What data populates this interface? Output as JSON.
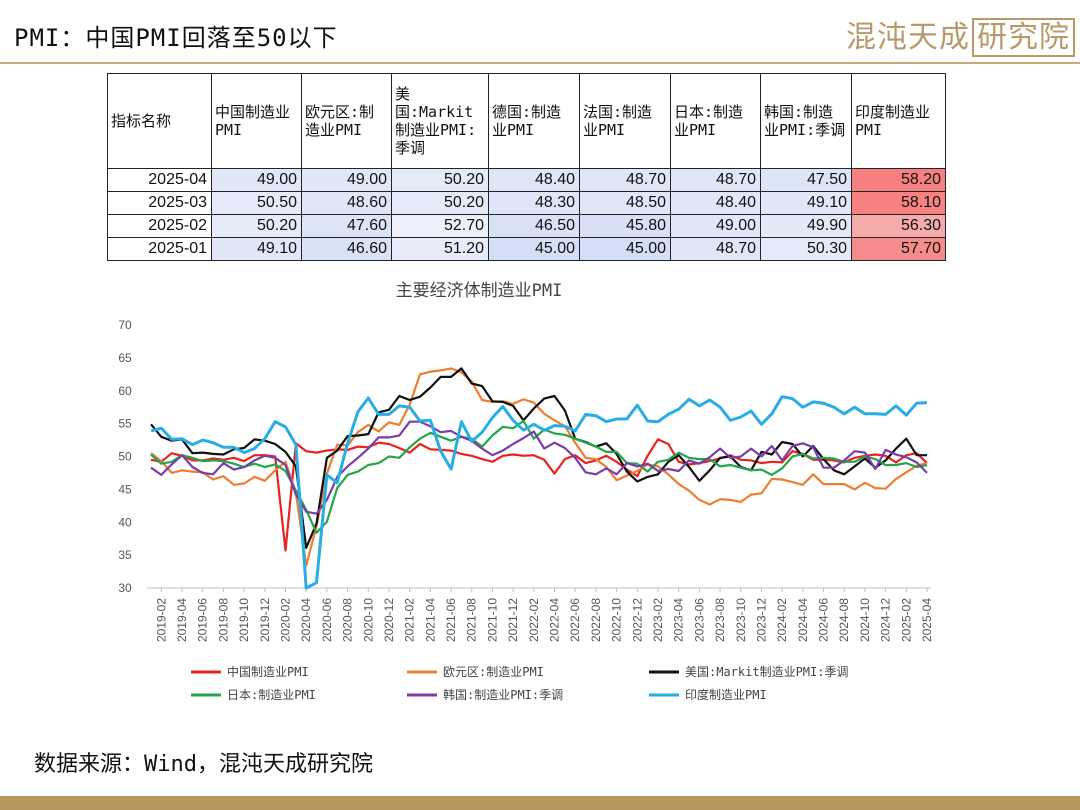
{
  "slide": {
    "title": "PMI：中国PMI回落至50以下",
    "logo_main": "混沌天成",
    "logo_boxed": "研究院",
    "source": "数据来源：Wind，混沌天成研究院"
  },
  "table": {
    "headers": [
      "指标名称",
      "中国制造业PMI",
      "欧元区:制造业PMI",
      "美国:Markit制造业PMI:季调",
      "德国:制造业PMI",
      "法国:制造业PMI",
      "日本:制造业PMI",
      "韩国:制造业PMI:季调",
      "印度制造业PMI"
    ],
    "rows": [
      {
        "date": "2025-04",
        "values": [
          "49.00",
          "49.00",
          "50.20",
          "48.40",
          "48.70",
          "48.70",
          "47.50",
          "58.20"
        ]
      },
      {
        "date": "2025-03",
        "values": [
          "50.50",
          "48.60",
          "50.20",
          "48.30",
          "48.50",
          "48.40",
          "49.10",
          "58.10"
        ]
      },
      {
        "date": "2025-02",
        "values": [
          "50.20",
          "47.60",
          "52.70",
          "46.50",
          "45.80",
          "49.00",
          "49.90",
          "56.30"
        ]
      },
      {
        "date": "2025-01",
        "values": [
          "49.10",
          "46.60",
          "51.20",
          "45.00",
          "45.00",
          "48.70",
          "50.30",
          "57.70"
        ]
      }
    ]
  },
  "chart_data": {
    "type": "line",
    "title": "主要经济体制造业PMI",
    "xlabel": "",
    "ylabel": "",
    "ylim": [
      30,
      70
    ],
    "yticks": [
      "70",
      "65",
      "60",
      "55",
      "50",
      "45",
      "40",
      "35",
      "30"
    ],
    "xticks": [
      "2019-02",
      "2019-04",
      "2019-06",
      "2019-08",
      "2019-10",
      "2019-12",
      "2020-02",
      "2020-04",
      "2020-06",
      "2020-08",
      "2020-10",
      "2020-12",
      "2021-02",
      "2021-04",
      "2021-06",
      "2021-08",
      "2021-10",
      "2021-12",
      "2022-02",
      "2022-04",
      "2022-06",
      "2022-08",
      "2022-10",
      "2022-12",
      "2023-02",
      "2023-04",
      "2023-06",
      "2023-08",
      "2023-10",
      "2023-12",
      "2024-02",
      "2024-04",
      "2024-06",
      "2024-08",
      "2024-10",
      "2024-12",
      "2025-02",
      "2025-04"
    ],
    "x_start": "2019-01",
    "legend_position": "bottom",
    "grid": false,
    "series": [
      {
        "name": "中国制造业PMI",
        "color": "#e8231f",
        "values": [
          49.5,
          49.2,
          50.5,
          50.1,
          49.4,
          49.4,
          49.7,
          49.5,
          49.8,
          49.3,
          50.2,
          50.2,
          50.0,
          35.7,
          52.0,
          50.8,
          50.6,
          50.9,
          51.1,
          51.0,
          51.5,
          51.4,
          52.1,
          51.9,
          51.3,
          50.6,
          51.9,
          51.1,
          51.0,
          50.9,
          50.4,
          50.1,
          49.6,
          49.2,
          50.1,
          50.3,
          50.1,
          50.2,
          49.5,
          47.4,
          49.6,
          50.2,
          49.0,
          49.4,
          50.1,
          49.2,
          48.0,
          47.0,
          50.1,
          52.6,
          51.9,
          49.2,
          48.8,
          49.0,
          49.3,
          49.7,
          50.2,
          49.5,
          49.4,
          49.0,
          49.2,
          49.1,
          50.8,
          50.4,
          49.5,
          49.5,
          49.4,
          49.1,
          49.8,
          50.1,
          50.3,
          50.1,
          49.1,
          50.2,
          50.5,
          49.0
        ]
      },
      {
        "name": "欧元区:制造业PMI",
        "color": "#ef7d31",
        "values": [
          50.5,
          49.3,
          47.5,
          47.9,
          47.7,
          47.6,
          46.5,
          47.0,
          45.7,
          45.9,
          46.9,
          46.3,
          47.9,
          49.2,
          44.5,
          33.4,
          39.4,
          47.4,
          51.8,
          51.7,
          53.7,
          54.8,
          53.8,
          55.2,
          54.8,
          57.9,
          62.5,
          62.9,
          63.1,
          63.4,
          62.8,
          61.4,
          58.6,
          58.3,
          58.4,
          58.0,
          58.7,
          58.2,
          56.5,
          55.5,
          54.6,
          52.1,
          49.8,
          49.6,
          48.4,
          46.4,
          47.1,
          47.8,
          48.8,
          48.5,
          47.3,
          45.8,
          44.8,
          43.4,
          42.7,
          43.5,
          43.4,
          43.1,
          44.2,
          44.4,
          46.6,
          46.5,
          46.1,
          45.7,
          47.3,
          45.8,
          45.8,
          45.8,
          45.0,
          46.0,
          45.2,
          45.1,
          46.6,
          47.6,
          48.6,
          49.0
        ]
      },
      {
        "name": "美国:Markit制造业PMI:季调",
        "color": "#111111",
        "values": [
          54.9,
          53.0,
          52.4,
          52.6,
          50.5,
          50.6,
          50.4,
          50.3,
          51.1,
          51.3,
          52.6,
          52.4,
          51.9,
          50.7,
          48.5,
          36.1,
          39.8,
          49.8,
          50.9,
          53.1,
          53.2,
          53.4,
          56.7,
          57.1,
          59.2,
          58.6,
          59.1,
          60.5,
          62.1,
          62.1,
          63.4,
          61.1,
          60.7,
          58.4,
          58.3,
          57.7,
          55.5,
          57.3,
          58.8,
          59.2,
          57.0,
          52.7,
          52.2,
          51.5,
          52.0,
          50.4,
          47.7,
          46.2,
          46.9,
          47.3,
          49.2,
          50.2,
          48.4,
          46.3,
          47.9,
          49.8,
          50.0,
          48.4,
          47.9,
          50.7,
          50.3,
          52.2,
          51.9,
          50.0,
          51.6,
          49.6,
          47.9,
          47.3,
          48.5,
          49.7,
          48.3,
          49.4,
          51.2,
          52.7,
          50.2,
          50.2
        ]
      },
      {
        "name": "日本:制造业PMI",
        "color": "#22a64a",
        "values": [
          50.3,
          48.9,
          49.2,
          50.2,
          49.8,
          49.3,
          49.4,
          49.3,
          48.9,
          48.4,
          48.9,
          48.4,
          48.8,
          47.8,
          44.8,
          41.9,
          38.4,
          40.1,
          45.2,
          47.2,
          47.7,
          48.7,
          49.0,
          50.0,
          49.8,
          51.4,
          52.7,
          53.6,
          53.0,
          52.4,
          53.0,
          52.7,
          51.5,
          53.2,
          54.5,
          54.3,
          55.4,
          52.7,
          54.1,
          53.5,
          53.3,
          52.7,
          52.1,
          51.5,
          50.7,
          50.7,
          49.0,
          48.9,
          47.7,
          49.2,
          49.5,
          50.6,
          49.8,
          49.6,
          49.6,
          48.5,
          48.7,
          48.3,
          47.9,
          48.0,
          47.2,
          48.2,
          50.0,
          50.4,
          49.7,
          49.8,
          49.7,
          49.2,
          49.2,
          50.0,
          49.6,
          48.7,
          48.7,
          49.0,
          48.4,
          48.7
        ]
      },
      {
        "name": "韩国:制造业PMI:季调",
        "color": "#7a3ea8",
        "values": [
          48.3,
          47.2,
          48.8,
          50.2,
          48.4,
          47.5,
          47.3,
          49.0,
          48.0,
          48.4,
          49.4,
          50.1,
          49.8,
          48.7,
          44.2,
          41.6,
          41.3,
          43.4,
          46.9,
          48.5,
          49.8,
          51.2,
          52.9,
          52.9,
          53.2,
          55.3,
          55.3,
          54.6,
          53.7,
          53.9,
          53.0,
          52.4,
          51.2,
          50.2,
          50.9,
          51.9,
          52.8,
          53.8,
          51.2,
          52.1,
          51.3,
          49.8,
          47.6,
          47.3,
          48.2,
          47.3,
          49.0,
          48.5,
          48.9,
          47.8,
          48.1,
          47.8,
          49.4,
          48.9,
          49.9,
          51.2,
          49.8,
          50.0,
          51.2,
          50.0,
          51.6,
          49.4,
          51.6,
          52.0,
          51.4,
          48.3,
          48.3,
          49.4,
          50.8,
          50.6,
          48.1,
          51.0,
          50.3,
          49.9,
          49.1,
          47.5
        ]
      },
      {
        "name": "印度制造业PMI",
        "color": "#28aee4",
        "values": [
          53.9,
          54.3,
          52.6,
          52.7,
          51.8,
          52.5,
          52.1,
          51.4,
          51.4,
          50.6,
          51.2,
          52.7,
          55.3,
          54.5,
          51.8,
          27.4,
          30.8,
          47.2,
          46.0,
          52.0,
          56.8,
          58.9,
          56.4,
          56.4,
          57.7,
          57.5,
          55.4,
          55.5,
          50.8,
          48.1,
          55.3,
          52.3,
          53.7,
          55.9,
          57.6,
          55.5,
          54.0,
          54.9,
          54.0,
          54.7,
          54.6,
          53.9,
          56.4,
          56.2,
          55.3,
          55.7,
          55.7,
          57.8,
          55.4,
          55.3,
          56.4,
          57.2,
          58.7,
          57.7,
          58.6,
          57.5,
          55.5,
          56.0,
          56.9,
          54.9,
          56.5,
          59.1,
          58.8,
          57.5,
          58.3,
          58.1,
          57.5,
          56.5,
          57.5,
          56.5,
          56.5,
          56.4,
          57.7,
          56.3,
          58.1,
          58.2
        ]
      }
    ]
  }
}
